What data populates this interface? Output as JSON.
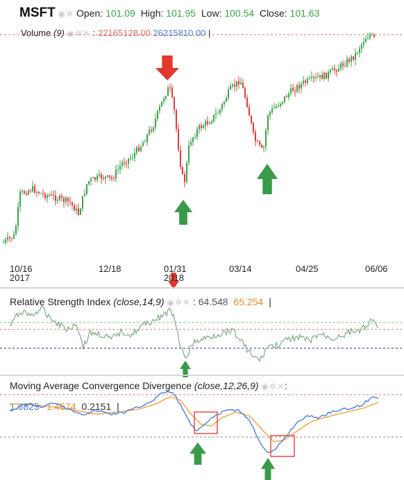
{
  "header": {
    "symbol": "MSFT",
    "open_label": "Open:",
    "open": "101.09",
    "high_label": "High:",
    "high": "101.95",
    "low_label": "Low:",
    "low": "100.54",
    "close_label": "Close:",
    "close": "101.63",
    "volume_label": "Volume",
    "volume_params": "(9)",
    "volume_val1": "22165128.00",
    "volume_val2": "26215810.00",
    "cursor": "|"
  },
  "colors": {
    "up": "#3aa14a",
    "down": "#e03a3a",
    "rsi_line": "#7fa882",
    "macd_line": "#4a7fd6",
    "signal_line": "#f0a040",
    "level_red": "#e07070",
    "level_green": "#66cc66",
    "level_blue": "#2020c0",
    "arrow_red": "#e0382e",
    "arrow_green": "#3a9a4a",
    "box": "#e04040"
  },
  "icons": [
    "eye-icon",
    "gear-icon",
    "close-icon"
  ],
  "x_ticks": [
    {
      "label": "10/16",
      "sub": "2017"
    },
    {
      "label": "12/18",
      "sub": ""
    },
    {
      "label": "01/31",
      "sub": "2018"
    },
    {
      "label": "03/14",
      "sub": ""
    },
    {
      "label": "04/25",
      "sub": ""
    },
    {
      "label": "06/06",
      "sub": ""
    }
  ],
  "rsi": {
    "title": "Relative Strength Index",
    "params": "(close,14,9)",
    "val1": "64.548",
    "val2": "65.254",
    "cursor": "|"
  },
  "macd": {
    "title": "Moving Average Convergence Divergence",
    "params": "(close,12,26,9)",
    "colon": ":",
    "macd": "1.6825",
    "signal": "1.4674",
    "hist": "0.2151",
    "cursor": "|"
  },
  "chart_data": {
    "type": "line",
    "x": [
      "10/16/2017",
      "12/18/2017",
      "01/31/2018",
      "03/14/2018",
      "04/25/2018",
      "06/06/2018"
    ],
    "close_approx": [
      78.0,
      85.5,
      94.0,
      91.5,
      95.0,
      101.6
    ],
    "rsi_current": 64.548,
    "macd_current": 1.6825,
    "signal_current": 1.4674,
    "histogram_current": 0.2151,
    "annotations": [
      "down arrow at local top (late January)",
      "up arrow at early-February low",
      "up arrow at late-March low"
    ]
  }
}
